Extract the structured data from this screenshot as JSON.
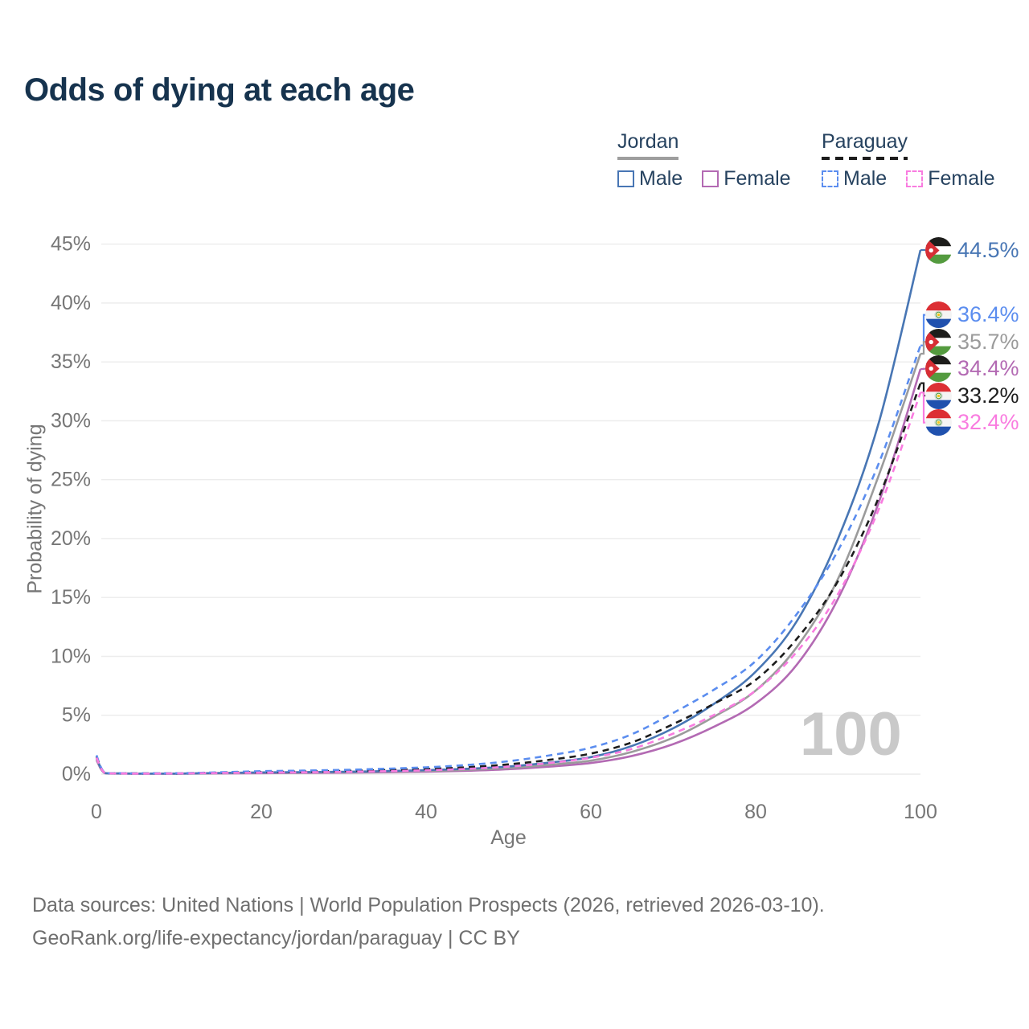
{
  "title": "Odds of dying at each age",
  "legend": {
    "groups": [
      {
        "name": "Jordan",
        "line_style": "solid",
        "underline_color": "#9e9e9e",
        "items": [
          {
            "label": "Male",
            "color": "#4876b4",
            "dashed": false
          },
          {
            "label": "Female",
            "color": "#b36ab3",
            "dashed": false
          }
        ]
      },
      {
        "name": "Paraguay",
        "line_style": "dashed",
        "underline_color": "#1d1d1d",
        "items": [
          {
            "label": "Male",
            "color": "#5b8def",
            "dashed": true
          },
          {
            "label": "Female",
            "color": "#f97ce0",
            "dashed": true
          }
        ]
      }
    ]
  },
  "chart_data": {
    "type": "line",
    "title": "Odds of dying at each age",
    "xlabel": "Age",
    "ylabel": "Probability of dying",
    "xlim": [
      0,
      100
    ],
    "ylim": [
      0,
      45
    ],
    "xticks": [
      0,
      20,
      40,
      60,
      80,
      100
    ],
    "yticks": [
      0,
      5,
      10,
      15,
      20,
      25,
      30,
      35,
      40,
      45
    ],
    "ytick_suffix": "%",
    "grid": true,
    "legend_position": "top-right",
    "hover_age_indicator": "100",
    "x": [
      0,
      1,
      3,
      5,
      10,
      15,
      20,
      25,
      30,
      35,
      40,
      45,
      50,
      55,
      60,
      65,
      70,
      75,
      80,
      85,
      90,
      95,
      100
    ],
    "series": [
      {
        "id": "jordan-male",
        "name": "Jordan Male",
        "country": "Jordan",
        "sex": "Male",
        "flag": "jordan",
        "color": "#4876b4",
        "dashed": false,
        "z": 3,
        "end_value": 44.5,
        "end_label": "44.5%",
        "values": [
          1.4,
          0.1,
          0.06,
          0.05,
          0.05,
          0.1,
          0.15,
          0.17,
          0.2,
          0.26,
          0.34,
          0.46,
          0.65,
          0.98,
          1.45,
          2.4,
          3.9,
          6.0,
          8.7,
          13.0,
          20.0,
          30.0,
          44.5
        ]
      },
      {
        "id": "paraguay-male",
        "name": "Paraguay Male",
        "country": "Paraguay",
        "sex": "Male",
        "flag": "paraguay",
        "color": "#5b8def",
        "dashed": true,
        "z": 5,
        "end_value": 36.4,
        "end_label": "36.4%",
        "values": [
          1.6,
          0.12,
          0.08,
          0.07,
          0.08,
          0.16,
          0.25,
          0.3,
          0.36,
          0.46,
          0.58,
          0.78,
          1.1,
          1.6,
          2.25,
          3.4,
          5.2,
          7.2,
          9.6,
          13.6,
          19.0,
          26.5,
          36.4
        ]
      },
      {
        "id": "jordan-both",
        "name": "Jordan",
        "country": "Jordan",
        "sex": "Both",
        "flag": "jordan",
        "color": "#9b9b9b",
        "dashed": false,
        "z": 2,
        "end_value": 35.7,
        "end_label": "35.7%",
        "values": [
          1.3,
          0.09,
          0.06,
          0.05,
          0.05,
          0.08,
          0.12,
          0.14,
          0.16,
          0.21,
          0.27,
          0.37,
          0.52,
          0.8,
          1.15,
          1.9,
          3.1,
          4.9,
          7.1,
          10.8,
          16.6,
          25.5,
          35.7
        ]
      },
      {
        "id": "jordan-female",
        "name": "Jordan Female",
        "country": "Jordan",
        "sex": "Female",
        "flag": "jordan",
        "color": "#b36ab3",
        "dashed": false,
        "z": 1,
        "end_value": 34.4,
        "end_label": "34.4%",
        "values": [
          1.2,
          0.08,
          0.05,
          0.04,
          0.04,
          0.06,
          0.08,
          0.1,
          0.12,
          0.16,
          0.21,
          0.29,
          0.42,
          0.64,
          0.95,
          1.55,
          2.55,
          4.05,
          6.0,
          9.3,
          14.9,
          23.2,
          34.4
        ]
      },
      {
        "id": "paraguay-both",
        "name": "Paraguay",
        "country": "Paraguay",
        "sex": "Both",
        "flag": "paraguay",
        "color": "#1d1d1d",
        "dashed": true,
        "z": 4,
        "end_value": 33.2,
        "end_label": "33.2%",
        "values": [
          1.5,
          0.11,
          0.07,
          0.06,
          0.07,
          0.13,
          0.18,
          0.22,
          0.27,
          0.35,
          0.44,
          0.59,
          0.83,
          1.22,
          1.75,
          2.7,
          4.25,
          6.0,
          8.0,
          11.5,
          16.4,
          23.6,
          33.2
        ]
      },
      {
        "id": "paraguay-female",
        "name": "Paraguay Female",
        "country": "Paraguay",
        "sex": "Female",
        "flag": "paraguay",
        "color": "#f97ce0",
        "dashed": true,
        "z": 6,
        "end_value": 32.4,
        "end_label": "32.4%",
        "values": [
          1.4,
          0.1,
          0.06,
          0.05,
          0.06,
          0.1,
          0.13,
          0.16,
          0.19,
          0.25,
          0.33,
          0.45,
          0.64,
          0.95,
          1.4,
          2.15,
          3.45,
          5.05,
          7.1,
          10.4,
          15.3,
          22.6,
          32.4
        ]
      }
    ]
  },
  "footer": {
    "line1": "Data sources: United Nations | World Population Prospects (2026, retrieved 2026-03-10).",
    "line2": "GeoRank.org/life-expectancy/jordan/paraguay | CC BY"
  }
}
